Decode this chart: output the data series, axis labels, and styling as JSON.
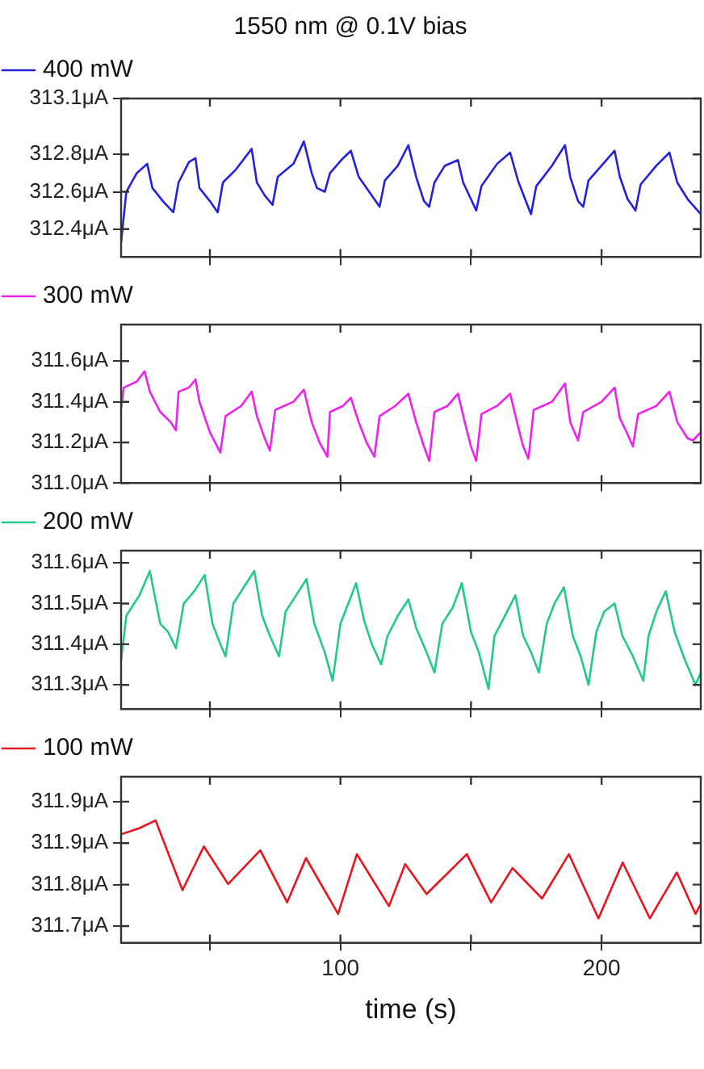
{
  "chart_data": [
    {
      "type": "line",
      "title": "1550 nm @ 0.1V bias",
      "xlim": [
        16,
        238
      ],
      "ylim": [
        312.25,
        313.1
      ],
      "yticks": [
        {
          "value": 312.4,
          "label": "312.4μA"
        },
        {
          "value": 312.6,
          "label": "312.6μA"
        },
        {
          "value": 312.8,
          "label": "312.8μA"
        },
        {
          "value": 313.1,
          "label": "313.1μA"
        }
      ],
      "tick_labels": "y",
      "legend": "top left",
      "x": [
        16,
        18,
        22,
        26,
        28,
        32,
        36,
        38,
        42,
        44.5,
        46,
        50,
        53,
        55,
        60,
        66,
        68,
        71,
        74,
        76,
        82,
        86,
        89,
        91,
        94,
        96,
        101,
        104,
        107,
        111,
        115,
        117,
        122,
        126,
        129,
        132,
        134,
        136,
        140,
        145,
        147,
        150,
        152,
        154,
        160,
        165,
        168,
        171,
        173,
        175,
        181,
        186,
        188,
        191,
        193,
        195,
        200,
        205,
        207,
        210,
        213,
        215,
        221,
        226,
        229,
        233,
        238
      ],
      "series": [
        {
          "name": "400 mW",
          "color": "#2222dd",
          "values": [
            312.33,
            312.6,
            312.7,
            312.75,
            312.62,
            312.55,
            312.49,
            312.65,
            312.76,
            312.78,
            312.62,
            312.55,
            312.49,
            312.65,
            312.72,
            312.83,
            312.65,
            312.58,
            312.53,
            312.68,
            312.75,
            312.87,
            312.7,
            312.62,
            312.6,
            312.7,
            312.78,
            312.82,
            312.68,
            312.6,
            312.52,
            312.66,
            312.74,
            312.85,
            312.68,
            312.55,
            312.52,
            312.65,
            312.74,
            312.77,
            312.65,
            312.56,
            312.5,
            312.63,
            312.75,
            312.81,
            312.66,
            312.55,
            312.48,
            312.63,
            312.74,
            312.85,
            312.68,
            312.55,
            312.52,
            312.66,
            312.74,
            312.82,
            312.68,
            312.56,
            312.5,
            312.64,
            312.74,
            312.81,
            312.65,
            312.56,
            312.48
          ]
        }
      ]
    },
    {
      "type": "line",
      "xlim": [
        16,
        238
      ],
      "ylim": [
        311.0,
        311.78
      ],
      "yticks": [
        {
          "value": 311.0,
          "label": "311.0μA"
        },
        {
          "value": 311.2,
          "label": "311.2μA"
        },
        {
          "value": 311.4,
          "label": "311.4μA"
        },
        {
          "value": 311.6,
          "label": "311.6μA"
        }
      ],
      "tick_labels": "y",
      "legend": "top left",
      "x": [
        16,
        17,
        22,
        25,
        27,
        31,
        35,
        37,
        38,
        42,
        44.5,
        46,
        50,
        54,
        56,
        62,
        66,
        68,
        71,
        73,
        75,
        82,
        86,
        89,
        92,
        95,
        96,
        101,
        104,
        107,
        110,
        113,
        115,
        121,
        126,
        129,
        132,
        134,
        136,
        141,
        145,
        148,
        150,
        152,
        154,
        160,
        165,
        168,
        170,
        172,
        174,
        181,
        186,
        188,
        190,
        191,
        193,
        200,
        205,
        207,
        210,
        212,
        214,
        221,
        226,
        229,
        233,
        235,
        238
      ],
      "series": [
        {
          "name": "300 mW",
          "color": "#ee22ee",
          "values": [
            311.37,
            311.47,
            311.5,
            311.55,
            311.45,
            311.35,
            311.3,
            311.26,
            311.45,
            311.47,
            311.51,
            311.4,
            311.25,
            311.15,
            311.33,
            311.38,
            311.45,
            311.33,
            311.22,
            311.16,
            311.36,
            311.4,
            311.46,
            311.3,
            311.2,
            311.13,
            311.35,
            311.38,
            311.42,
            311.3,
            311.2,
            311.13,
            311.33,
            311.38,
            311.44,
            311.3,
            311.18,
            311.11,
            311.35,
            311.38,
            311.44,
            311.28,
            311.18,
            311.11,
            311.34,
            311.38,
            311.44,
            311.28,
            311.18,
            311.12,
            311.36,
            311.4,
            311.49,
            311.3,
            311.24,
            311.21,
            311.35,
            311.4,
            311.47,
            311.32,
            311.24,
            311.18,
            311.34,
            311.38,
            311.45,
            311.3,
            311.22,
            311.21,
            311.25
          ]
        }
      ]
    },
    {
      "type": "line",
      "xlim": [
        16,
        238
      ],
      "ylim": [
        311.24,
        311.63
      ],
      "yticks": [
        {
          "value": 311.3,
          "label": "311.3μA"
        },
        {
          "value": 311.4,
          "label": "311.4μA"
        },
        {
          "value": 311.5,
          "label": "311.5μA"
        },
        {
          "value": 311.6,
          "label": "311.6μA"
        }
      ],
      "tick_labels": "y",
      "legend": "top left",
      "x": [
        16,
        18,
        23,
        27,
        31,
        34,
        37,
        40,
        44,
        48,
        51,
        54,
        56,
        59,
        63,
        67,
        70,
        73,
        76.5,
        79,
        83,
        87,
        90,
        94,
        97,
        100,
        103,
        106,
        109,
        112,
        115.6,
        118,
        122,
        126,
        129,
        133,
        136,
        139,
        143,
        146.5,
        150,
        153,
        156.7,
        159,
        163,
        167,
        170,
        173,
        176,
        179,
        182,
        185.6,
        189,
        192,
        195,
        198,
        201,
        205,
        208,
        212,
        216,
        218,
        221,
        224.6,
        228,
        232,
        236,
        238
      ],
      "series": [
        {
          "name": "200 mW",
          "color": "#22c890",
          "values": [
            311.36,
            311.47,
            311.52,
            311.58,
            311.45,
            311.43,
            311.39,
            311.5,
            311.53,
            311.57,
            311.45,
            311.4,
            311.37,
            311.5,
            311.54,
            311.58,
            311.47,
            311.42,
            311.37,
            311.48,
            311.52,
            311.56,
            311.45,
            311.38,
            311.31,
            311.45,
            311.5,
            311.55,
            311.46,
            311.4,
            311.35,
            311.42,
            311.47,
            311.51,
            311.44,
            311.38,
            311.33,
            311.45,
            311.49,
            311.55,
            311.43,
            311.38,
            311.29,
            311.42,
            311.47,
            311.52,
            311.42,
            311.38,
            311.33,
            311.45,
            311.5,
            311.54,
            311.42,
            311.37,
            311.3,
            311.43,
            311.48,
            311.5,
            311.42,
            311.37,
            311.31,
            311.42,
            311.48,
            311.53,
            311.43,
            311.36,
            311.3,
            311.33
          ]
        }
      ]
    },
    {
      "type": "line",
      "xlabel": "time (s)",
      "xlim": [
        16,
        238
      ],
      "xticks": [
        {
          "value": 50,
          "label": null
        },
        100,
        {
          "value": 150,
          "label": null
        },
        200
      ],
      "ylim": [
        311.67,
        311.97
      ],
      "yticks": [
        {
          "value": 311.7,
          "label": "311.7μA"
        },
        {
          "value": 311.775,
          "label": "311.8μA"
        },
        {
          "value": 311.85,
          "label": "311.9μA"
        },
        {
          "value": 311.925,
          "label": "311.9μA"
        }
      ],
      "legend": "top left",
      "x": [
        16,
        23,
        29.2,
        39.5,
        47.7,
        57,
        69.3,
        79.6,
        86.8,
        99.1,
        106.3,
        118.6,
        124.8,
        133,
        148.4,
        157.7,
        165.9,
        177.2,
        187.5,
        198.8,
        208.1,
        218.5,
        228.8,
        236,
        238
      ],
      "series": [
        {
          "name": "100 mW",
          "color": "#e8141e",
          "values": [
            311.866,
            311.877,
            311.891,
            311.765,
            311.844,
            311.776,
            311.837,
            311.743,
            311.823,
            311.722,
            311.83,
            311.736,
            311.812,
            311.758,
            311.83,
            311.743,
            311.805,
            311.75,
            311.83,
            311.714,
            311.815,
            311.714,
            311.797,
            311.722,
            311.74
          ]
        }
      ]
    }
  ]
}
